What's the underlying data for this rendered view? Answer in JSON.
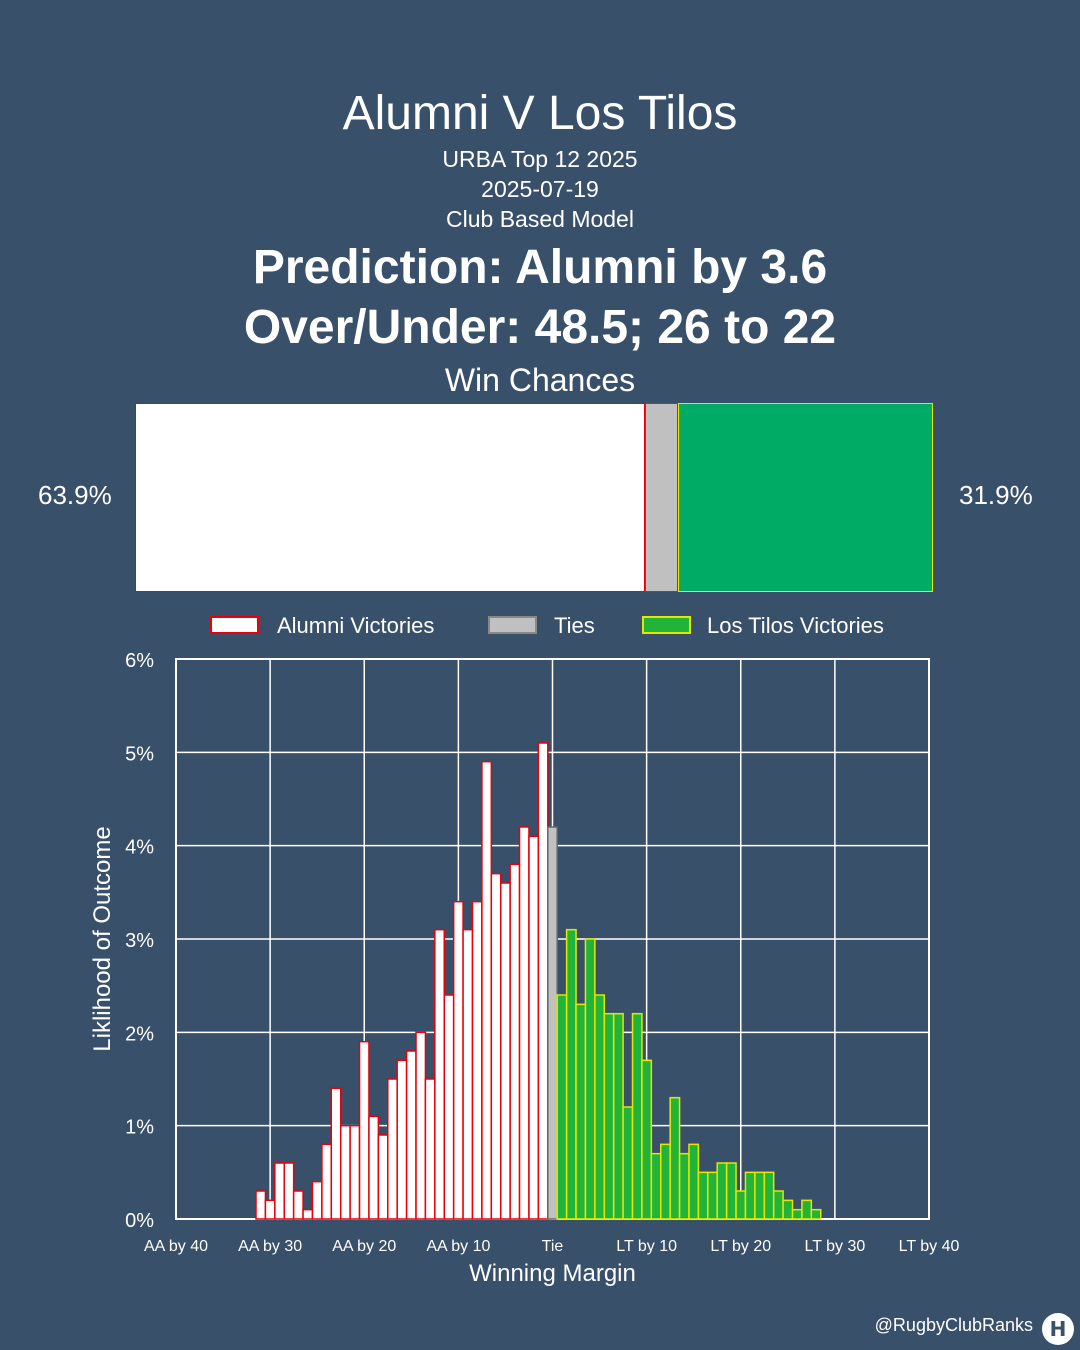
{
  "header": {
    "title": "Alumni V Los Tilos",
    "competition": "URBA Top 12 2025",
    "date": "2025-07-19",
    "model": "Club Based Model",
    "prediction": "Prediction: Alumni by 3.6",
    "over_under": "Over/Under: 48.5; 26 to 22"
  },
  "win_chances": {
    "label": "Win Chances",
    "alumni_pct": 63.9,
    "tie_pct": 4.2,
    "los_tilos_pct": 31.9,
    "alumni_label": "63.9%",
    "los_tilos_label": "31.9%"
  },
  "colors": {
    "background": "#385069",
    "alumni_fill": "#ffffff",
    "alumni_edge": "#e8000b",
    "tie_fill": "#c0c0c0",
    "los_tilos_fill": "#00ab66",
    "los_tilos_fill_histogram": "#22b33b",
    "los_tilos_edge": "#e6e600",
    "grid": "#ffffff"
  },
  "chart_data": {
    "type": "bar",
    "xlabel": "Winning Margin",
    "ylabel": "Liklihood of Outcome",
    "xlim": [
      -40,
      40
    ],
    "ylim": [
      0,
      6
    ],
    "grid": true,
    "legend_position": "top",
    "x_ticks": [
      -40,
      -30,
      -20,
      -10,
      0,
      10,
      20,
      30,
      40
    ],
    "x_tick_labels": [
      "AA by 40",
      "AA by 30",
      "AA by 20",
      "AA by 10",
      "Tie",
      "LT by 10",
      "LT by 20",
      "LT by 30",
      "LT by 40"
    ],
    "y_ticks": [
      0,
      1,
      2,
      3,
      4,
      5,
      6
    ],
    "y_tick_labels": [
      "0%",
      "1%",
      "2%",
      "3%",
      "4%",
      "5%",
      "6%"
    ],
    "series": [
      {
        "name": "Alumni Victories",
        "x": [
          -31,
          -30,
          -29,
          -28,
          -27,
          -26,
          -25,
          -24,
          -23,
          -22,
          -21,
          -20,
          -19,
          -18,
          -17,
          -16,
          -15,
          -14,
          -13,
          -12,
          -11,
          -10,
          -9,
          -8,
          -7,
          -6,
          -5,
          -4,
          -3,
          -2,
          -1
        ],
        "values": [
          0.3,
          0.2,
          0.6,
          0.6,
          0.3,
          0.1,
          0.4,
          0.8,
          1.4,
          1.0,
          1.0,
          1.9,
          1.1,
          0.9,
          1.5,
          1.7,
          1.8,
          2.0,
          1.5,
          3.1,
          2.4,
          3.4,
          3.1,
          3.4,
          4.9,
          3.7,
          3.6,
          3.8,
          4.2,
          4.1,
          5.1
        ]
      },
      {
        "name": "Ties",
        "x": [
          0
        ],
        "values": [
          4.2
        ]
      },
      {
        "name": "Los Tilos Victories",
        "x": [
          1,
          2,
          3,
          4,
          5,
          6,
          7,
          8,
          9,
          10,
          11,
          12,
          13,
          14,
          15,
          16,
          17,
          18,
          19,
          20,
          21,
          22,
          23,
          24,
          25,
          26,
          27,
          28,
          29
        ],
        "values": [
          2.4,
          3.1,
          2.3,
          3.0,
          2.4,
          2.2,
          2.2,
          1.2,
          2.2,
          1.7,
          0.7,
          0.8,
          1.3,
          0.7,
          0.8,
          0.5,
          0.5,
          0.6,
          0.6,
          0.3,
          0.5,
          0.5,
          0.5,
          0.3,
          0.2,
          0.1,
          0.2,
          0.1,
          0.0
        ]
      }
    ]
  },
  "footer": {
    "handle": "@RugbyClubRanks",
    "logo_text": "H"
  }
}
